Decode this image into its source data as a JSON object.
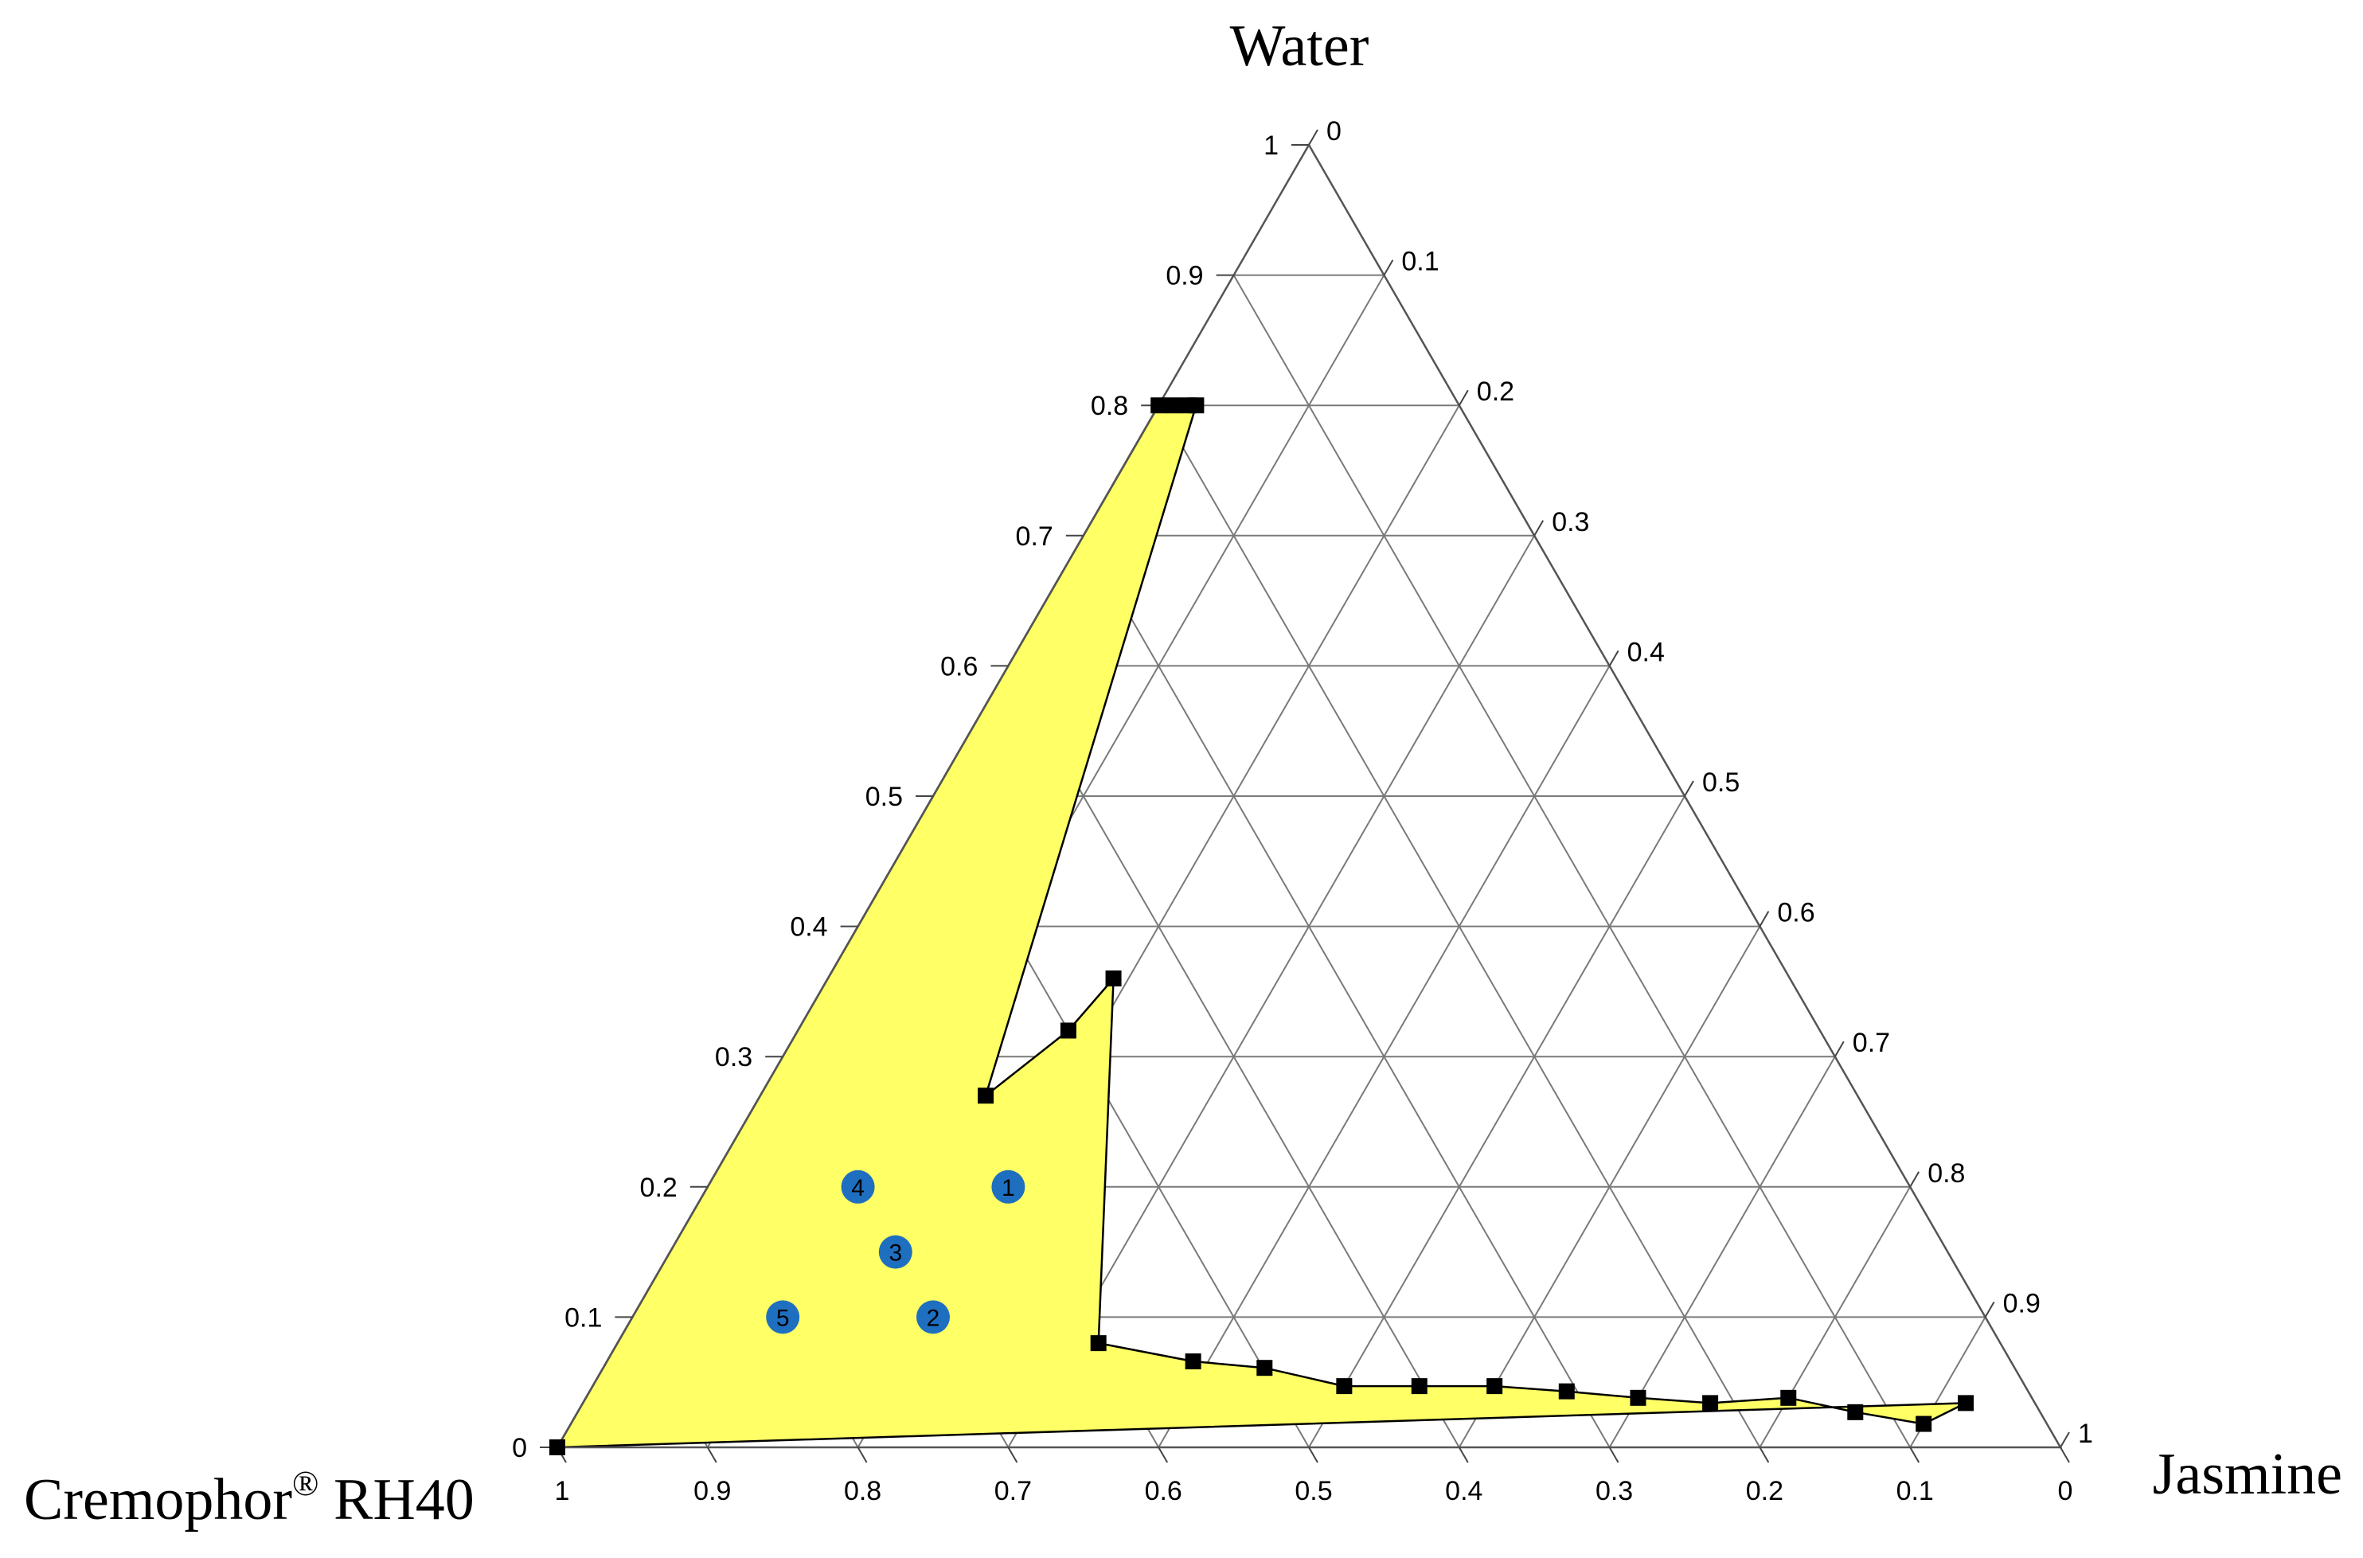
{
  "chart_data": {
    "type": "ternary",
    "corner_labels": {
      "top": "Water",
      "left_main": "Cremophor",
      "left_sup": "®",
      "left_rest": " RH40",
      "right": "Jasmine"
    },
    "tick_labels": {
      "left_axis": [
        "0",
        "0.1",
        "0.2",
        "0.3",
        "0.4",
        "0.5",
        "0.6",
        "0.7",
        "0.8",
        "0.9",
        "1"
      ],
      "right_axis": [
        "0",
        "0.1",
        "0.2",
        "0.3",
        "0.4",
        "0.5",
        "0.6",
        "0.7",
        "0.8",
        "0.9",
        "1"
      ],
      "bottom_axis": [
        "1",
        "0.9",
        "0.8",
        "0.7",
        "0.6",
        "0.5",
        "0.4",
        "0.3",
        "0.2",
        "0.1",
        "0"
      ]
    },
    "grid": true,
    "grid_step": 0.1,
    "colors": {
      "region_fill": "#ffff66",
      "region_stroke": "#000000",
      "boundary_marker": "#000000",
      "point_fill": "#1f6fc0",
      "grid": "#7a7a7a"
    },
    "microemulsion_region_boundary": [
      {
        "water": 0.8,
        "jasmine": 0.0
      },
      {
        "water": 0.8,
        "jasmine": 0.01
      },
      {
        "water": 0.8,
        "jasmine": 0.02
      },
      {
        "water": 0.8,
        "jasmine": 0.025
      },
      {
        "water": 0.27,
        "jasmine": 0.15
      },
      {
        "water": 0.32,
        "jasmine": 0.18
      },
      {
        "water": 0.36,
        "jasmine": 0.19
      },
      {
        "water": 0.08,
        "jasmine": 0.32
      },
      {
        "water": 0.066,
        "jasmine": 0.39
      },
      {
        "water": 0.061,
        "jasmine": 0.44
      },
      {
        "water": 0.047,
        "jasmine": 0.5
      },
      {
        "water": 0.047,
        "jasmine": 0.55
      },
      {
        "water": 0.047,
        "jasmine": 0.6
      },
      {
        "water": 0.043,
        "jasmine": 0.65
      },
      {
        "water": 0.038,
        "jasmine": 0.7
      },
      {
        "water": 0.034,
        "jasmine": 0.75
      },
      {
        "water": 0.038,
        "jasmine": 0.8
      },
      {
        "water": 0.027,
        "jasmine": 0.85
      },
      {
        "water": 0.018,
        "jasmine": 0.9
      },
      {
        "water": 0.034,
        "jasmine": 0.92
      },
      {
        "water": 0.0,
        "jasmine": 0.0
      }
    ],
    "formulations": [
      {
        "label": "1",
        "water": 0.2,
        "jasmine": 0.2
      },
      {
        "label": "2",
        "water": 0.1,
        "jasmine": 0.2
      },
      {
        "label": "3",
        "water": 0.15,
        "jasmine": 0.15
      },
      {
        "label": "4",
        "water": 0.2,
        "jasmine": 0.1
      },
      {
        "label": "5",
        "water": 0.1,
        "jasmine": 0.1
      }
    ]
  }
}
